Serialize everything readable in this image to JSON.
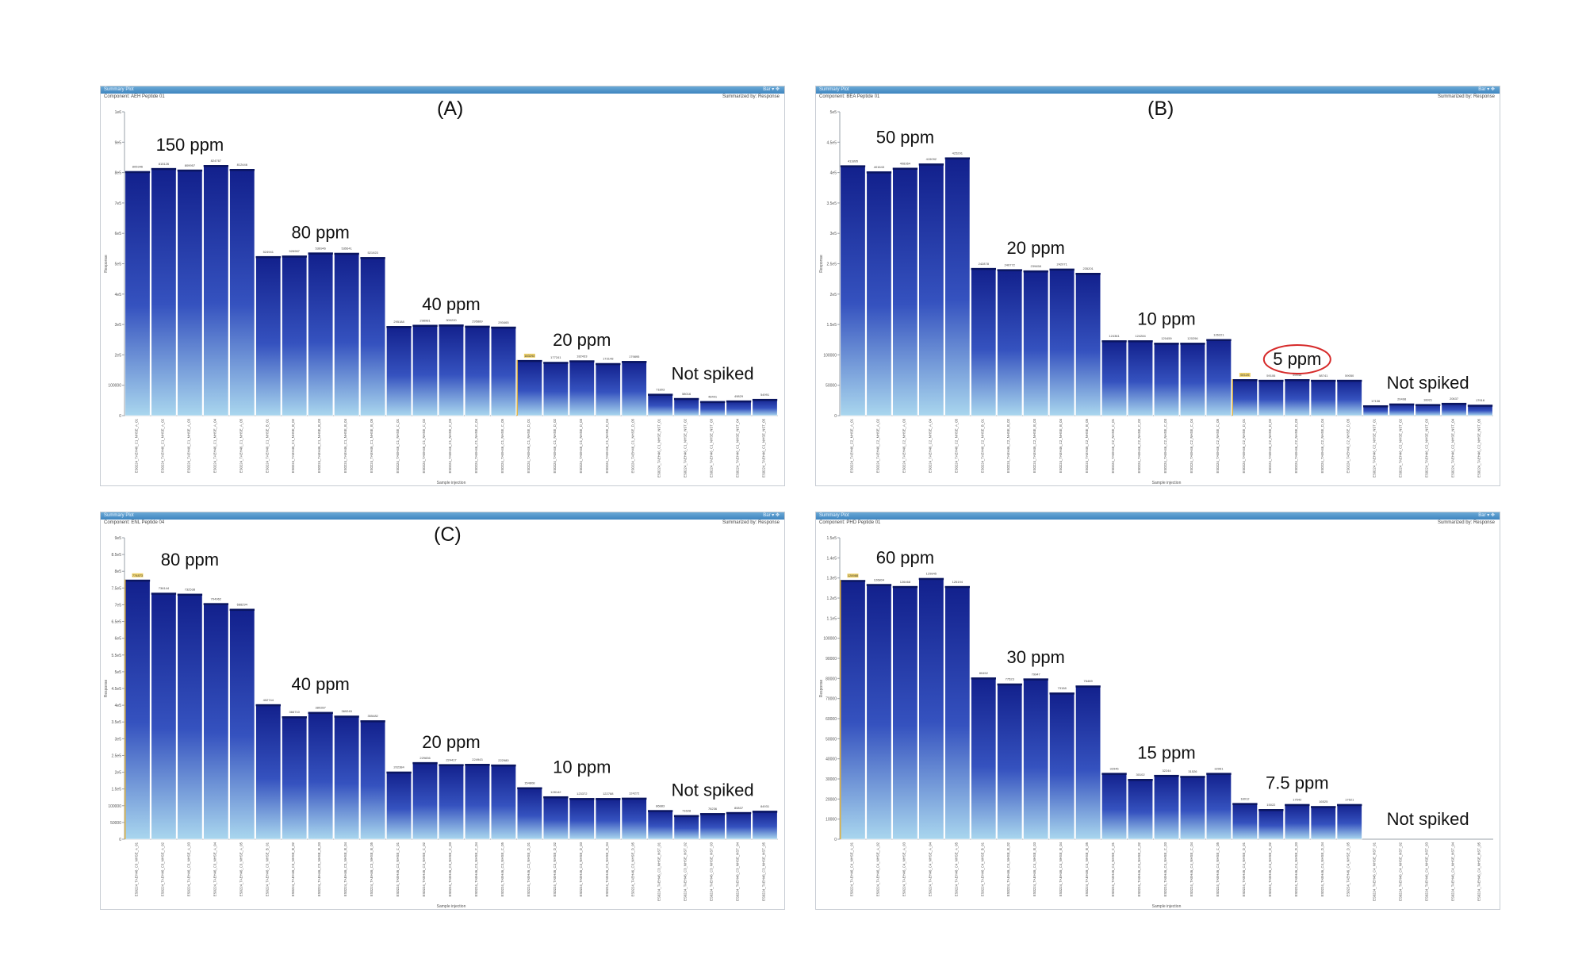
{
  "figure": {
    "window_tab": "Summary Plot",
    "window_controls": "Bar ▾ ✥",
    "summarized_by": "Summarized by: Response",
    "y_axis_title": "Response",
    "x_axis_title": "Sample injection"
  },
  "panels": [
    {
      "letter": "(A)",
      "component": "Component: AEH Peptide 01",
      "chart_data": {
        "type": "bar",
        "xlabel": "Sample injection",
        "ylabel": "Response",
        "ylim": [
          0,
          1000000
        ],
        "yticks": [
          0,
          100000,
          200000,
          300000,
          400000,
          500000,
          600000,
          700000,
          800000,
          900000,
          1000000
        ],
        "ytick_labels": [
          "0",
          "100000",
          "2e5",
          "3e5",
          "4e5",
          "5e5",
          "6e5",
          "7e5",
          "8e5",
          "9e5",
          "1e6"
        ],
        "values": [
          805000,
          815000,
          810000,
          825000,
          812000,
          525000,
          527000,
          537000,
          536000,
          522000,
          295000,
          299000,
          300000,
          296000,
          293000,
          183000,
          177000,
          182000,
          173000,
          180000,
          72000,
          58000,
          48000,
          50000,
          55000
        ],
        "highlight_index": 15,
        "bar_labels": [
          "805346",
          "815126",
          "809957",
          "824767",
          "812446",
          "524941",
          "526967",
          "536946",
          "535641",
          "521923",
          "295188",
          "298981",
          "300220",
          "295889",
          "293465",
          "183292",
          "177241",
          "182433",
          "173148",
          "179895",
          "71803",
          "58016",
          "48401",
          "49829",
          "54991"
        ],
        "sample_labels": [
          "ES0224_TAEH46_C1_NHSE_A_01",
          "ES0224_TAEH46_C1_NHSE_A_02",
          "ES0224_TAEH46_C1_NHSE_A_03",
          "ES0224_TAEH46_C1_NHSE_A_04",
          "ES0224_TAEH46_C1_NHSE_A_05",
          "ES0224_TAEH46_C1_NHSE_B_01",
          "ES0224_TAEH46_C1_NHSE_B_02",
          "ES0224_TAEH46_C1_NHSE_B_03",
          "ES0224_TAEH46_C1_NHSE_B_04",
          "ES0224_TAEH46_C1_NHSE_B_05",
          "ES0224_TAEH46_C1_NHSE_C_01",
          "ES0224_TAEH46_C1_NHSE_C_02",
          "ES0224_TAEH46_C1_NHSE_C_03",
          "ES0224_TAEH46_C1_NHSE_C_04",
          "ES0224_TAEH46_C1_NHSE_C_05",
          "ES0224_TAEH46_C1_NHSE_D_01",
          "ES0224_TAEH46_C1_NHSE_D_02",
          "ES0224_TAEH46_C1_NHSE_D_03",
          "ES0224_TAEH46_C1_NHSE_D_04",
          "ES0224_TAEH46_C1_NHSE_D_05",
          "ES0224_TAEH46_C1_NHSE_NST_01",
          "ES0224_TAEH46_C1_NHSE_NST_02",
          "ES0224_TAEH46_C1_NHSE_NST_03",
          "ES0224_TAEH46_C1_NHSE_NST_04",
          "ES0224_TAEH46_C1_NHSE_NST_05"
        ],
        "group_labels": [
          {
            "text": "150 ppm",
            "first": 0,
            "last": 4
          },
          {
            "text": "80 ppm",
            "first": 5,
            "last": 9
          },
          {
            "text": "40 ppm",
            "first": 10,
            "last": 14
          },
          {
            "text": "20 ppm",
            "first": 15,
            "last": 19
          },
          {
            "text": "Not spiked",
            "first": 20,
            "last": 24
          }
        ]
      }
    },
    {
      "letter": "(B)",
      "component": "Component: BEA Peptide 01",
      "chart_data": {
        "type": "bar",
        "xlabel": "Sample injection",
        "ylabel": "Response",
        "ylim": [
          0,
          500000
        ],
        "yticks": [
          0,
          50000,
          100000,
          150000,
          200000,
          250000,
          300000,
          350000,
          400000,
          450000,
          500000
        ],
        "ytick_labels": [
          "0",
          "50000",
          "100000",
          "1.5e5",
          "2e5",
          "2.5e5",
          "3e5",
          "3.5e5",
          "4e5",
          "4.5e5",
          "5e5"
        ],
        "values": [
          412000,
          402000,
          408000,
          415000,
          425000,
          243000,
          241000,
          239000,
          242000,
          235000,
          124000,
          124000,
          120000,
          120000,
          126000,
          60000,
          59000,
          60000,
          59000,
          59000,
          17000,
          20000,
          19000,
          21000,
          18000
        ],
        "highlight_index": 15,
        "bar_labels": [
          "411895",
          "401643",
          "408364",
          "415092",
          "425291",
          "242878",
          "240772",
          "239458",
          "242071",
          "235201",
          "124361",
          "124284",
          "120459",
          "120296",
          "126221",
          "60126",
          "59106",
          "59946",
          "58741",
          "59050",
          "17136",
          "20498",
          "18921",
          "20637",
          "17916"
        ],
        "sample_labels": [
          "ES0224_TAEH46_C2_NHSE_A_01",
          "ES0224_TAEH46_C2_NHSE_A_02",
          "ES0224_TAEH46_C2_NHSE_A_03",
          "ES0224_TAEH46_C2_NHSE_A_04",
          "ES0224_TAEH46_C2_NHSE_A_05",
          "ES0224_TAEH46_C2_NHSE_B_01",
          "ES0224_TAEH46_C2_NHSE_B_02",
          "ES0224_TAEH46_C2_NHSE_B_03",
          "ES0224_TAEH46_C2_NHSE_B_04",
          "ES0224_TAEH46_C2_NHSE_B_05",
          "ES0224_TAEH46_C2_NHSE_C_01",
          "ES0224_TAEH46_C2_NHSE_C_02",
          "ES0224_TAEH46_C2_NHSE_C_03",
          "ES0224_TAEH46_C2_NHSE_C_04",
          "ES0224_TAEH46_C2_NHSE_C_05",
          "ES0224_TAEH46_C2_NHSE_D_01",
          "ES0224_TAEH46_C2_NHSE_D_02",
          "ES0224_TAEH46_C2_NHSE_D_03",
          "ES0224_TAEH46_C2_NHSE_D_04",
          "ES0224_TAEH46_C2_NHSE_D_05",
          "ES0224_TAEH46_C2_NHSE_NST_01",
          "ES0224_TAEH46_C2_NHSE_NST_02",
          "ES0224_TAEH46_C2_NHSE_NST_03",
          "ES0224_TAEH46_C2_NHSE_NST_04",
          "ES0224_TAEH46_C2_NHSE_NST_05"
        ],
        "group_labels": [
          {
            "text": "50 ppm",
            "first": 0,
            "last": 4
          },
          {
            "text": "20 ppm",
            "first": 5,
            "last": 9
          },
          {
            "text": "10 ppm",
            "first": 10,
            "last": 14
          },
          {
            "text": "5 ppm",
            "first": 15,
            "last": 19,
            "circled": true
          },
          {
            "text": "Not spiked",
            "first": 20,
            "last": 24
          }
        ]
      }
    },
    {
      "letter": "(C)",
      "component": "Component: ENL Peptide 04",
      "chart_data": {
        "type": "bar",
        "xlabel": "Sample injection",
        "ylabel": "Response",
        "ylim": [
          0,
          900000
        ],
        "yticks": [
          0,
          50000,
          100000,
          150000,
          200000,
          250000,
          300000,
          350000,
          400000,
          450000,
          500000,
          550000,
          600000,
          650000,
          700000,
          750000,
          800000,
          850000,
          900000
        ],
        "ytick_labels": [
          "0",
          "50000",
          "100000",
          "1.5e5",
          "2e5",
          "2.5e5",
          "3e5",
          "3.5e5",
          "4e5",
          "4.5e5",
          "5e5",
          "5.5e5",
          "6e5",
          "6.5e5",
          "7e5",
          "7.5e5",
          "8e5",
          "8.5e5",
          "9e5"
        ],
        "values": [
          775000,
          736000,
          733000,
          705000,
          688000,
          403000,
          367000,
          380000,
          369000,
          355000,
          202000,
          230000,
          224000,
          225000,
          223000,
          155000,
          128000,
          123000,
          123000,
          124000,
          87000,
          72000,
          78000,
          81000,
          85000
        ],
        "highlight_index": 0,
        "bar_labels": [
          "774873",
          "736144",
          "732538",
          "704962",
          "688294",
          "402744",
          "366710",
          "380287",
          "369245",
          "355482",
          "202384",
          "229836",
          "224417",
          "224943",
          "222980",
          "154808",
          "128142",
          "123372",
          "122788",
          "124272",
          "86883",
          "71628",
          "78236",
          "80837",
          "84931"
        ],
        "sample_labels": [
          "ES0224_TAEH46_C3_NHSE_A_01",
          "ES0224_TAEH46_C3_NHSE_A_02",
          "ES0224_TAEH46_C3_NHSE_A_03",
          "ES0224_TAEH46_C3_NHSE_A_04",
          "ES0224_TAEH46_C3_NHSE_A_05",
          "ES0224_TAEH46_C3_NHSE_B_01",
          "ES0224_TAEH46_C3_NHSE_B_02",
          "ES0224_TAEH46_C3_NHSE_B_03",
          "ES0224_TAEH46_C3_NHSE_B_04",
          "ES0224_TAEH46_C3_NHSE_B_05",
          "ES0224_TAEH46_C3_NHSE_C_01",
          "ES0224_TAEH46_C3_NHSE_C_02",
          "ES0224_TAEH46_C3_NHSE_C_03",
          "ES0224_TAEH46_C3_NHSE_C_04",
          "ES0224_TAEH46_C3_NHSE_C_05",
          "ES0224_TAEH46_C3_NHSE_D_01",
          "ES0224_TAEH46_C3_NHSE_D_02",
          "ES0224_TAEH46_C3_NHSE_D_03",
          "ES0224_TAEH46_C3_NHSE_D_04",
          "ES0224_TAEH46_C3_NHSE_D_05",
          "ES0224_TAEH46_C3_NHSE_NST_01",
          "ES0224_TAEH46_C3_NHSE_NST_02",
          "ES0224_TAEH46_C3_NHSE_NST_03",
          "ES0224_TAEH46_C3_NHSE_NST_04",
          "ES0224_TAEH46_C3_NHSE_NST_05"
        ],
        "group_labels": [
          {
            "text": "80 ppm",
            "first": 0,
            "last": 4
          },
          {
            "text": "40 ppm",
            "first": 5,
            "last": 9
          },
          {
            "text": "20 ppm",
            "first": 10,
            "last": 14
          },
          {
            "text": "10 ppm",
            "first": 15,
            "last": 19
          },
          {
            "text": "Not spiked",
            "first": 20,
            "last": 24
          }
        ]
      }
    },
    {
      "letter": "",
      "component": "Component: PHD Peptide 01",
      "chart_data": {
        "type": "bar",
        "xlabel": "Sample injection",
        "ylabel": "Response",
        "ylim": [
          0,
          150000
        ],
        "yticks": [
          0,
          10000,
          20000,
          30000,
          40000,
          50000,
          60000,
          70000,
          80000,
          90000,
          100000,
          110000,
          120000,
          130000,
          140000,
          150000
        ],
        "ytick_labels": [
          "0",
          "10000",
          "20000",
          "30000",
          "40000",
          "50000",
          "60000",
          "70000",
          "80000",
          "90000",
          "100000",
          "1.1e5",
          "1.2e5",
          "1.3e5",
          "1.4e5",
          "1.5e5"
        ],
        "values": [
          129000,
          127000,
          126000,
          130000,
          126000,
          80500,
          77500,
          80000,
          73000,
          76500,
          33000,
          30000,
          32000,
          31500,
          33000,
          18000,
          15000,
          17500,
          16500,
          17500,
          0,
          0,
          0,
          0,
          0
        ],
        "highlight_index": 0,
        "bar_labels": [
          "128988",
          "126804",
          "126468",
          "129845",
          "126194",
          "80452",
          "77523",
          "79947",
          "73158",
          "76469",
          "32946",
          "30102",
          "32244",
          "31526",
          "32961",
          "18012",
          "15022",
          "17542",
          "16525",
          "17621",
          "",
          "",
          "",
          "",
          ""
        ],
        "sample_labels": [
          "ES0224_TAEH46_C4_NHSE_A_01",
          "ES0224_TAEH46_C4_NHSE_A_02",
          "ES0224_TAEH46_C4_NHSE_A_03",
          "ES0224_TAEH46_C4_NHSE_A_04",
          "ES0224_TAEH46_C4_NHSE_A_05",
          "ES0224_TAEH46_C4_NHSE_B_01",
          "ES0224_TAEH46_C4_NHSE_B_02",
          "ES0224_TAEH46_C4_NHSE_B_03",
          "ES0224_TAEH46_C4_NHSE_B_04",
          "ES0224_TAEH46_C4_NHSE_B_05",
          "ES0224_TAEH46_C4_NHSE_C_01",
          "ES0224_TAEH46_C4_NHSE_C_02",
          "ES0224_TAEH46_C4_NHSE_C_03",
          "ES0224_TAEH46_C4_NHSE_C_04",
          "ES0224_TAEH46_C4_NHSE_C_05",
          "ES0224_TAEH46_C4_NHSE_D_01",
          "ES0224_TAEH46_C4_NHSE_D_02",
          "ES0224_TAEH46_C4_NHSE_D_03",
          "ES0224_TAEH46_C4_NHSE_D_04",
          "ES0224_TAEH46_C4_NHSE_D_05",
          "ES0224_TAEH46_C4_NHSE_NST_01",
          "ES0224_TAEH46_C4_NHSE_NST_02",
          "ES0224_TAEH46_C4_NHSE_NST_03",
          "ES0224_TAEH46_C4_NHSE_NST_04",
          "ES0224_TAEH46_C4_NHSE_NST_05"
        ],
        "group_labels": [
          {
            "text": "60 ppm",
            "first": 0,
            "last": 4
          },
          {
            "text": "30 ppm",
            "first": 5,
            "last": 9
          },
          {
            "text": "15 ppm",
            "first": 10,
            "last": 14
          },
          {
            "text": "7.5 ppm",
            "first": 15,
            "last": 19
          },
          {
            "text": "Not spiked",
            "first": 20,
            "last": 24
          }
        ]
      }
    }
  ]
}
